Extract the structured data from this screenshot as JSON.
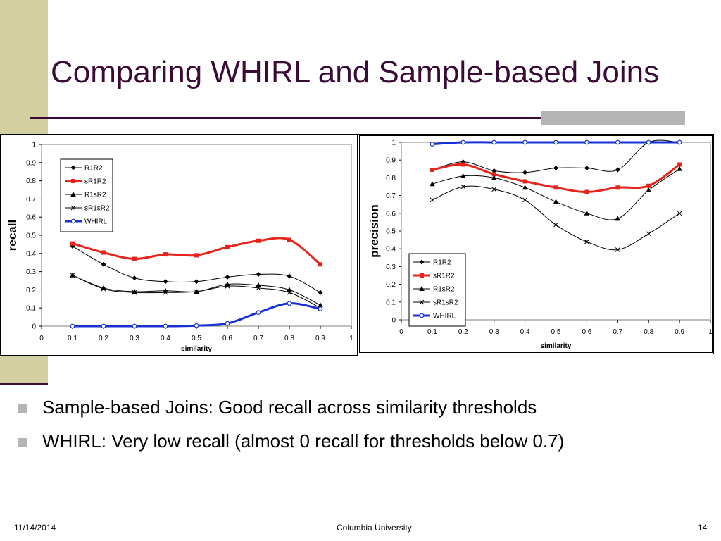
{
  "slide": {
    "title": "Comparing WHIRL and Sample-based Joins",
    "bullets": [
      "Sample-based Joins: Good recall across similarity thresholds",
      "WHIRL:  Very low recall (almost 0 recall for thresholds below 0.7)"
    ],
    "footer": {
      "date": "11/14/2014",
      "org": "Columbia University",
      "page": "14"
    }
  },
  "chart_data": [
    {
      "type": "line",
      "xlabel": "similarity",
      "ylabel": "recall",
      "xlim": [
        0,
        1
      ],
      "ylim": [
        0,
        1
      ],
      "xticks": [
        "0",
        "0.1",
        "0.2",
        "0.3",
        "0.4",
        "0.5",
        "0.6",
        "0.7",
        "0.8",
        "0.9",
        "1"
      ],
      "yticks": [
        "0",
        "0.1",
        "0.2",
        "0.3",
        "0.4",
        "0.5",
        "0.6",
        "0.7",
        "0.8",
        "0.9",
        "1"
      ],
      "grid": false,
      "legend_position": "top-left",
      "series": [
        {
          "name": "R1R2",
          "color": "#000000",
          "width": 1,
          "marker": "diamond",
          "x": [
            0.1,
            0.2,
            0.3,
            0.4,
            0.5,
            0.6,
            0.7,
            0.8,
            0.9
          ],
          "y": [
            0.44,
            0.34,
            0.265,
            0.245,
            0.245,
            0.27,
            0.285,
            0.275,
            0.185
          ]
        },
        {
          "name": "sR1R2",
          "color": "#e8231b",
          "width": 3,
          "marker": "square",
          "x": [
            0.1,
            0.2,
            0.3,
            0.4,
            0.5,
            0.6,
            0.7,
            0.8,
            0.9
          ],
          "y": [
            0.455,
            0.405,
            0.37,
            0.395,
            0.39,
            0.435,
            0.47,
            0.475,
            0.34
          ]
        },
        {
          "name": "R1sR2",
          "color": "#000000",
          "width": 1,
          "marker": "triangle",
          "x": [
            0.1,
            0.2,
            0.3,
            0.4,
            0.5,
            0.6,
            0.7,
            0.8,
            0.9
          ],
          "y": [
            0.28,
            0.21,
            0.19,
            0.195,
            0.19,
            0.23,
            0.225,
            0.2,
            0.115
          ]
        },
        {
          "name": "sR1sR2",
          "color": "#000000",
          "width": 1,
          "marker": "x",
          "x": [
            0.1,
            0.2,
            0.3,
            0.4,
            0.5,
            0.6,
            0.7,
            0.8,
            0.9
          ],
          "y": [
            0.28,
            0.205,
            0.185,
            0.185,
            0.19,
            0.22,
            0.21,
            0.185,
            0.1
          ]
        },
        {
          "name": "WHIRL",
          "color": "#1630d6",
          "width": 3,
          "marker": "circle",
          "x": [
            0.1,
            0.2,
            0.3,
            0.4,
            0.5,
            0.6,
            0.7,
            0.8,
            0.9
          ],
          "y": [
            0.0,
            0.0,
            0.0,
            0.0,
            0.003,
            0.015,
            0.075,
            0.125,
            0.095
          ]
        }
      ]
    },
    {
      "type": "line",
      "xlabel": "similarity",
      "ylabel": "precision",
      "xlim": [
        0,
        1
      ],
      "ylim": [
        0,
        1
      ],
      "xticks": [
        "0",
        "0.1",
        "0.2",
        "0.3",
        "0.4",
        "0.5",
        "0.6",
        "0.7",
        "0.8",
        "0.9",
        "1"
      ],
      "yticks": [
        "0",
        "0.1",
        "0.2",
        "0.3",
        "0.4",
        "0.5",
        "0.6",
        "0.7",
        "0.8",
        "0.9",
        "1"
      ],
      "grid": false,
      "legend_position": "bottom-left",
      "series": [
        {
          "name": "R1R2",
          "color": "#000000",
          "width": 1,
          "marker": "diamond",
          "x": [
            0.1,
            0.2,
            0.3,
            0.4,
            0.5,
            0.6,
            0.7,
            0.8,
            0.9
          ],
          "y": [
            0.845,
            0.89,
            0.84,
            0.83,
            0.855,
            0.855,
            0.845,
            1.0,
            1.0
          ]
        },
        {
          "name": "sR1R2",
          "color": "#e8231b",
          "width": 3,
          "marker": "square",
          "x": [
            0.1,
            0.2,
            0.3,
            0.4,
            0.5,
            0.6,
            0.7,
            0.8,
            0.9
          ],
          "y": [
            0.845,
            0.875,
            0.82,
            0.78,
            0.745,
            0.72,
            0.745,
            0.755,
            0.875
          ]
        },
        {
          "name": "R1sR2",
          "color": "#000000",
          "width": 1,
          "marker": "triangle",
          "x": [
            0.1,
            0.2,
            0.3,
            0.4,
            0.5,
            0.6,
            0.7,
            0.8,
            0.9
          ],
          "y": [
            0.765,
            0.81,
            0.8,
            0.745,
            0.665,
            0.6,
            0.57,
            0.73,
            0.85
          ]
        },
        {
          "name": "sR1sR2",
          "color": "#000000",
          "width": 1,
          "marker": "x",
          "x": [
            0.1,
            0.2,
            0.3,
            0.4,
            0.5,
            0.6,
            0.7,
            0.8,
            0.9
          ],
          "y": [
            0.675,
            0.75,
            0.735,
            0.675,
            0.535,
            0.44,
            0.395,
            0.485,
            0.6
          ]
        },
        {
          "name": "WHIRL",
          "color": "#1630d6",
          "width": 3,
          "marker": "circle",
          "x": [
            0.1,
            0.2,
            0.3,
            0.4,
            0.5,
            0.6,
            0.7,
            0.8,
            0.9
          ],
          "y": [
            0.99,
            1.0,
            1.0,
            1.0,
            1.0,
            1.0,
            1.0,
            1.0,
            1.0
          ]
        }
      ]
    }
  ]
}
